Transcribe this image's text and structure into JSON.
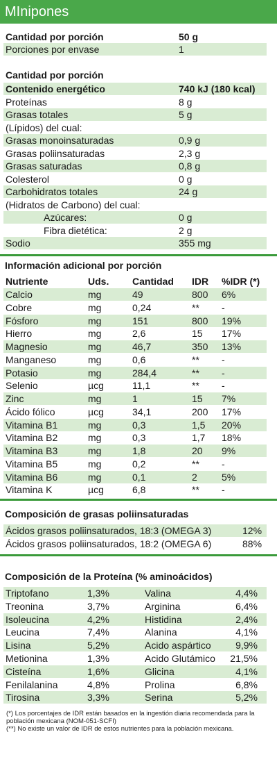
{
  "header": {
    "title": "MInipones"
  },
  "serving": [
    [
      "Cantidad por porción",
      "50 g"
    ],
    [
      "Porciones por envase",
      "1"
    ]
  ],
  "nutrition": {
    "title": "Cantidad por porción",
    "rows": [
      [
        "Contenido energético",
        "740 kJ (180 kcal)"
      ],
      [
        "Proteínas",
        "8 g"
      ],
      [
        "Grasas totales",
        "5 g"
      ],
      [
        "(Lípidos) del cual:",
        ""
      ],
      [
        "Grasas monoinsaturadas",
        "0,9 g"
      ],
      [
        "Grasas poliinsaturadas",
        "2,3 g"
      ],
      [
        "Grasas saturadas",
        "0,8 g"
      ],
      [
        "Colesterol",
        "0 g"
      ],
      [
        "Carbohidratos totales",
        "24 g"
      ],
      [
        "(Hidratos de Carbono) del cual:",
        ""
      ],
      [
        "Azúcares:",
        "0 g"
      ],
      [
        "Fibra dietética:",
        "2 g"
      ],
      [
        "Sodio",
        "355 mg"
      ]
    ]
  },
  "additional": {
    "title": "Información adicional por porción",
    "headers": [
      "Nutriente",
      "Uds.",
      "Cantidad",
      "IDR",
      "%IDR (*)"
    ],
    "rows": [
      [
        "Calcio",
        "mg",
        "49",
        "800",
        "6%"
      ],
      [
        "Cobre",
        "mg",
        "0,24",
        "**",
        "-"
      ],
      [
        "Fósforo",
        "mg",
        "151",
        "800",
        "19%"
      ],
      [
        "Hierro",
        "mg",
        "2,6",
        "15",
        "17%"
      ],
      [
        "Magnesio",
        "mg",
        "46,7",
        "350",
        "13%"
      ],
      [
        "Manganeso",
        "mg",
        "0,6",
        "**",
        "-"
      ],
      [
        "Potasio",
        "mg",
        "284,4",
        "**",
        "-"
      ],
      [
        "Selenio",
        "µcg",
        "11,1",
        "**",
        "-"
      ],
      [
        "Zinc",
        "mg",
        "1",
        "15",
        "7%"
      ],
      [
        "Ácido fólico",
        "µcg",
        "34,1",
        "200",
        "17%"
      ],
      [
        "Vitamina B1",
        "mg",
        "0,3",
        "1,5",
        "20%"
      ],
      [
        "Vitamina B2",
        "mg",
        "0,3",
        "1,7",
        "18%"
      ],
      [
        "Vitamina B3",
        "mg",
        "1,8",
        "20",
        "9%"
      ],
      [
        "Vitamina B5",
        "mg",
        "0,2",
        "**",
        "-"
      ],
      [
        "Vitamina B6",
        "mg",
        "0,1",
        "2",
        "5%"
      ],
      [
        "Vitamina K",
        "µcg",
        "6,8",
        "**",
        "-"
      ]
    ]
  },
  "fats": {
    "title": "Composición de grasas poliinsaturadas",
    "rows": [
      [
        "Ácidos grasos poliinsaturados, 18:3 (OMEGA 3)",
        "12%"
      ],
      [
        "Ácidos grasos poliinsaturados, 18:2 (OMEGA 6)",
        "88%"
      ]
    ]
  },
  "protein": {
    "title": "Composición de la Proteína (% aminoácidos)",
    "rows": [
      [
        "Triptofano",
        "1,3%",
        "Valina",
        "4,4%"
      ],
      [
        "Treonina",
        "3,7%",
        "Arginina",
        "6,4%"
      ],
      [
        "Isoleucina",
        "4,2%",
        "Histidina",
        "2,4%"
      ],
      [
        "Leucina",
        "7,4%",
        "Alanina",
        "4,1%"
      ],
      [
        "Lisina",
        "5,2%",
        "Acido aspártico",
        "9,9%"
      ],
      [
        "Metionina",
        "1,3%",
        "Acido Glutámico",
        "21,5%"
      ],
      [
        "Cisteína",
        "1,6%",
        "Glicina",
        "4,1%"
      ],
      [
        "Fenilalanina",
        "4,8%",
        "Prolina",
        "6,8%"
      ],
      [
        "Tirosina",
        "3,3%",
        "Serina",
        "5,2%"
      ]
    ]
  },
  "footnotes": [
    "(*) Los porcentajes de IDR están basados en la ingestión diaria recomendada para la población mexicana (NOM-051-SCFI)",
    "(**) No existe un valor de IDR de estos nutrientes para la población mexicana."
  ]
}
